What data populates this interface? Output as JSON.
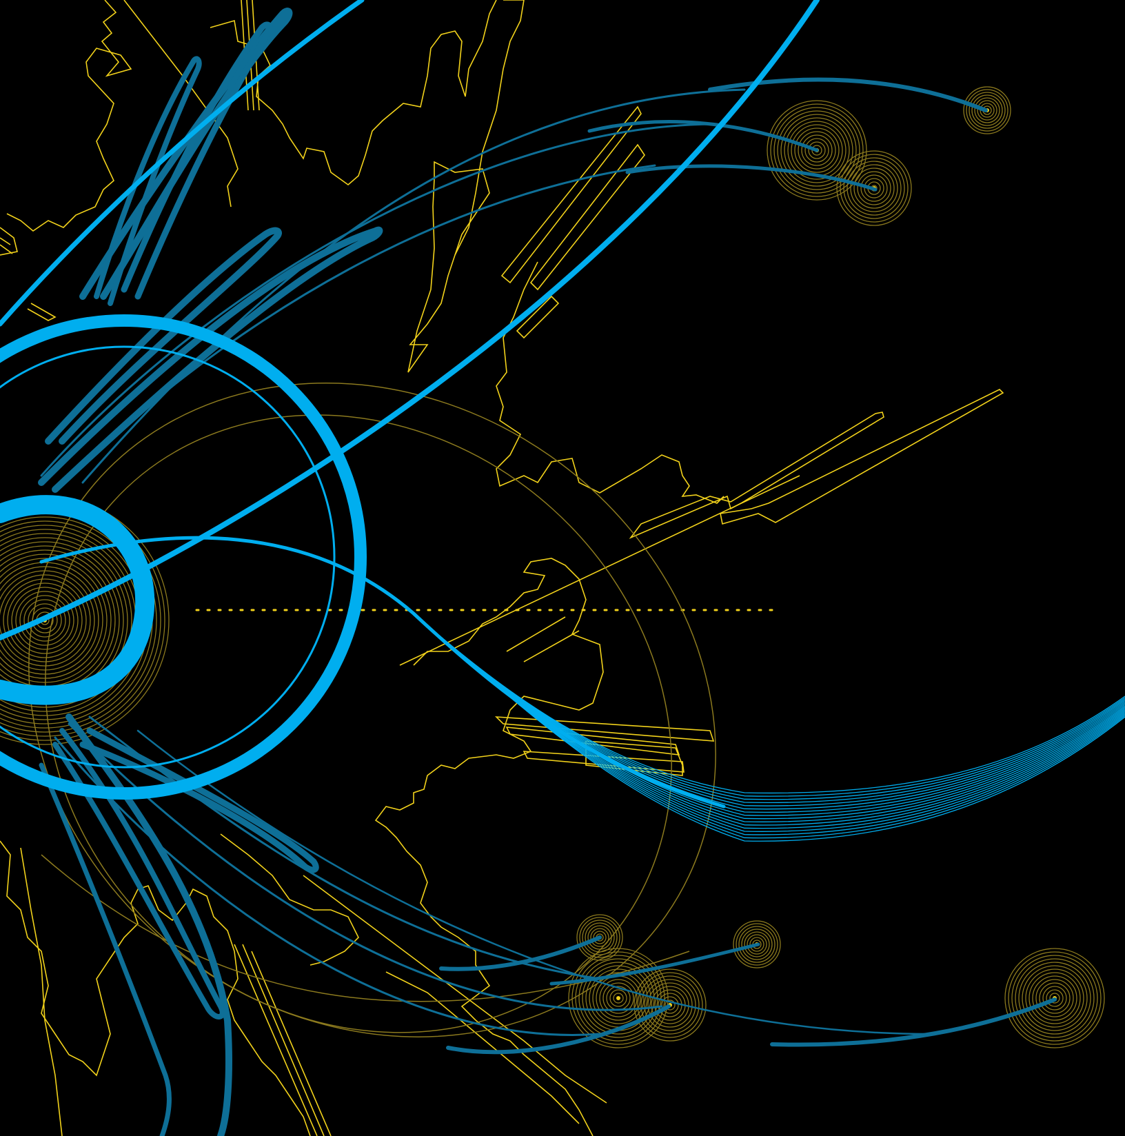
{
  "artwork": {
    "subject": "abstract-particle-collision-graphic",
    "colors": {
      "background": "#000000",
      "bright_blue": "#00AEEF",
      "dim_blue": "#0E6F97",
      "yellow": "#F2D21B",
      "olive": "#8C7A1E"
    },
    "text": []
  }
}
